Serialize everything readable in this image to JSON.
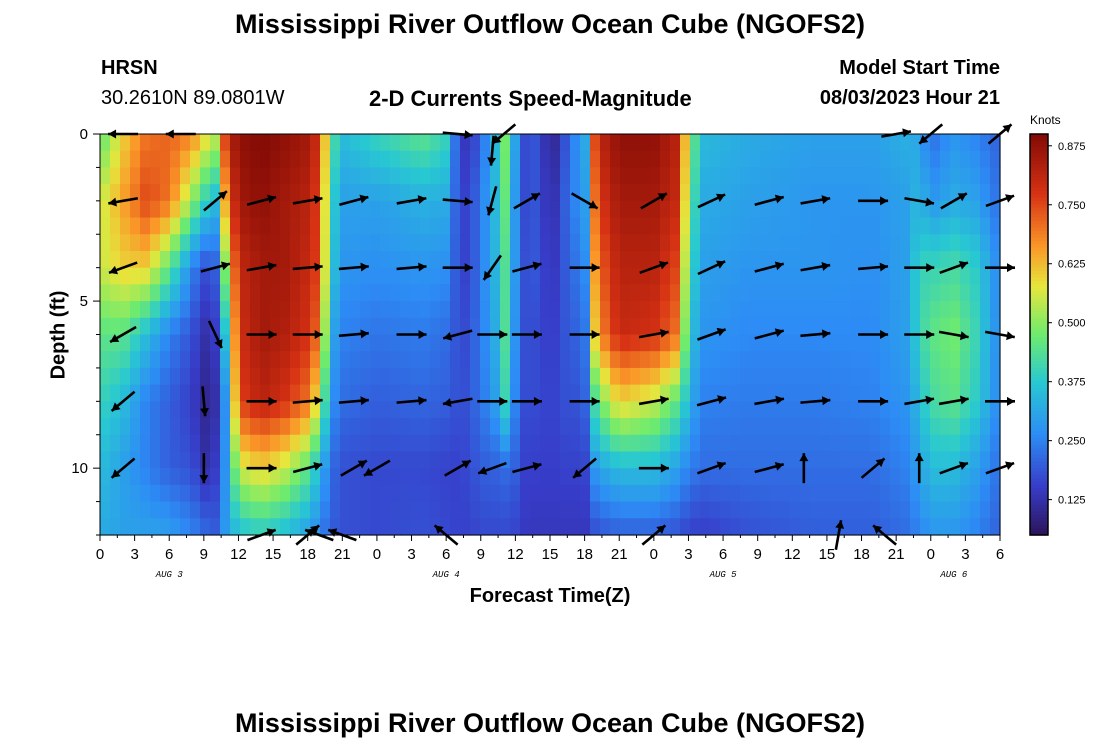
{
  "header": {
    "title": "Mississippi River Outflow Ocean Cube (NGOFS2)",
    "station": "HRSN",
    "coords": "30.2610N  89.0801W",
    "subtitle": "2-D Currents Speed-Magnitude",
    "model_start_label": "Model Start Time",
    "model_start_value": "08/03/2023 Hour 21"
  },
  "footer": {
    "title": "Mississippi River Outflow Ocean Cube (NGOFS2)"
  },
  "chart_data": {
    "type": "heatmap",
    "title": "2-D Currents Speed-Magnitude",
    "xlabel": "Forecast Time(Z)",
    "ylabel": "Depth (ft)",
    "x_tick_labels": [
      "0",
      "3",
      "6",
      "9",
      "12",
      "15",
      "18",
      "21",
      "0",
      "3",
      "6",
      "9",
      "12",
      "15",
      "18",
      "21",
      "0",
      "3",
      "6",
      "9",
      "12",
      "15",
      "18",
      "21",
      "0",
      "3",
      "6"
    ],
    "day_labels": [
      {
        "label": "AUG 3",
        "hour": 6
      },
      {
        "label": "AUG 4",
        "hour": 30
      },
      {
        "label": "AUG 5",
        "hour": 54
      },
      {
        "label": "AUG 6",
        "hour": 74
      }
    ],
    "y_ticks": [
      0,
      5,
      10
    ],
    "ylim": [
      0,
      12
    ],
    "xlim_hours": [
      0,
      78
    ],
    "colorbar": {
      "unit": "Knots",
      "ticks": [
        0.125,
        0.25,
        0.375,
        0.5,
        0.625,
        0.75,
        0.875
      ],
      "tick_labels": [
        "0.125",
        "0.250",
        "0.375",
        "0.500",
        "0.625",
        "0.750",
        "0.875"
      ],
      "range": [
        0.05,
        0.9
      ]
    },
    "depth_levels_ft": [
      0,
      2,
      4,
      6,
      8,
      10,
      12
    ],
    "speed_profiles": [
      {
        "hour": 0,
        "values": [
          0.45,
          0.55,
          0.55,
          0.45,
          0.4,
          0.35,
          0.32
        ]
      },
      {
        "hour": 2,
        "values": [
          0.6,
          0.65,
          0.6,
          0.45,
          0.35,
          0.3,
          0.3
        ]
      },
      {
        "hour": 4,
        "values": [
          0.7,
          0.75,
          0.6,
          0.35,
          0.25,
          0.25,
          0.3
        ]
      },
      {
        "hour": 6,
        "values": [
          0.72,
          0.7,
          0.45,
          0.25,
          0.2,
          0.2,
          0.3
        ]
      },
      {
        "hour": 8,
        "values": [
          0.68,
          0.5,
          0.25,
          0.18,
          0.15,
          0.18,
          0.25
        ]
      },
      {
        "hour": 9,
        "values": [
          0.6,
          0.4,
          0.18,
          0.12,
          0.1,
          0.12,
          0.22
        ]
      },
      {
        "hour": 10,
        "values": [
          0.55,
          0.35,
          0.2,
          0.15,
          0.12,
          0.15,
          0.2
        ]
      },
      {
        "hour": 11,
        "values": [
          0.8,
          0.7,
          0.55,
          0.4,
          0.3,
          0.3,
          0.3
        ]
      },
      {
        "hour": 12,
        "values": [
          0.88,
          0.85,
          0.8,
          0.78,
          0.75,
          0.55,
          0.35
        ]
      },
      {
        "hour": 14,
        "values": [
          0.9,
          0.88,
          0.85,
          0.85,
          0.82,
          0.6,
          0.38
        ]
      },
      {
        "hour": 16,
        "values": [
          0.88,
          0.85,
          0.85,
          0.83,
          0.78,
          0.55,
          0.35
        ]
      },
      {
        "hour": 18,
        "values": [
          0.85,
          0.82,
          0.8,
          0.78,
          0.7,
          0.45,
          0.3
        ]
      },
      {
        "hour": 19,
        "values": [
          0.78,
          0.75,
          0.75,
          0.7,
          0.55,
          0.35,
          0.25
        ]
      },
      {
        "hour": 20,
        "values": [
          0.45,
          0.4,
          0.38,
          0.32,
          0.28,
          0.22,
          0.2
        ]
      },
      {
        "hour": 21,
        "values": [
          0.35,
          0.3,
          0.28,
          0.25,
          0.22,
          0.18,
          0.18
        ]
      },
      {
        "hour": 24,
        "values": [
          0.4,
          0.3,
          0.27,
          0.23,
          0.2,
          0.17,
          0.17
        ]
      },
      {
        "hour": 28,
        "values": [
          0.45,
          0.33,
          0.28,
          0.24,
          0.21,
          0.17,
          0.18
        ]
      },
      {
        "hour": 30,
        "values": [
          0.4,
          0.32,
          0.27,
          0.22,
          0.2,
          0.16,
          0.17
        ]
      },
      {
        "hour": 31,
        "values": [
          0.18,
          0.18,
          0.18,
          0.18,
          0.18,
          0.16,
          0.16
        ]
      },
      {
        "hour": 32,
        "values": [
          0.12,
          0.15,
          0.15,
          0.17,
          0.18,
          0.17,
          0.16
        ]
      },
      {
        "hour": 33,
        "values": [
          0.22,
          0.25,
          0.25,
          0.25,
          0.24,
          0.2,
          0.17
        ]
      },
      {
        "hour": 34,
        "values": [
          0.3,
          0.3,
          0.3,
          0.28,
          0.26,
          0.2,
          0.17
        ]
      },
      {
        "hour": 35,
        "values": [
          0.5,
          0.48,
          0.45,
          0.45,
          0.42,
          0.22,
          0.17
        ]
      },
      {
        "hour": 36,
        "values": [
          0.3,
          0.28,
          0.28,
          0.27,
          0.25,
          0.2,
          0.16
        ]
      },
      {
        "hour": 37,
        "values": [
          0.15,
          0.15,
          0.16,
          0.16,
          0.16,
          0.15,
          0.14
        ]
      },
      {
        "hour": 38,
        "values": [
          0.2,
          0.2,
          0.2,
          0.18,
          0.18,
          0.16,
          0.14
        ]
      },
      {
        "hour": 39,
        "values": [
          0.08,
          0.1,
          0.12,
          0.14,
          0.15,
          0.15,
          0.14
        ]
      },
      {
        "hour": 40,
        "values": [
          0.15,
          0.18,
          0.18,
          0.18,
          0.18,
          0.16,
          0.14
        ]
      },
      {
        "hour": 41,
        "values": [
          0.25,
          0.25,
          0.22,
          0.2,
          0.18,
          0.16,
          0.14
        ]
      },
      {
        "hour": 42,
        "values": [
          0.3,
          0.28,
          0.25,
          0.22,
          0.2,
          0.16,
          0.14
        ]
      },
      {
        "hour": 43,
        "values": [
          0.8,
          0.75,
          0.7,
          0.65,
          0.45,
          0.3,
          0.18
        ]
      },
      {
        "hour": 45,
        "values": [
          0.88,
          0.85,
          0.82,
          0.8,
          0.6,
          0.35,
          0.2
        ]
      },
      {
        "hour": 48,
        "values": [
          0.88,
          0.85,
          0.82,
          0.78,
          0.55,
          0.35,
          0.2
        ]
      },
      {
        "hour": 50,
        "values": [
          0.82,
          0.8,
          0.75,
          0.7,
          0.45,
          0.3,
          0.18
        ]
      },
      {
        "hour": 51,
        "values": [
          0.55,
          0.5,
          0.45,
          0.4,
          0.35,
          0.25,
          0.16
        ]
      },
      {
        "hour": 52,
        "values": [
          0.35,
          0.32,
          0.3,
          0.28,
          0.25,
          0.22,
          0.15
        ]
      },
      {
        "hour": 56,
        "values": [
          0.32,
          0.3,
          0.28,
          0.26,
          0.24,
          0.22,
          0.18
        ]
      },
      {
        "hour": 62,
        "values": [
          0.3,
          0.28,
          0.28,
          0.26,
          0.24,
          0.22,
          0.2
        ]
      },
      {
        "hour": 67,
        "values": [
          0.3,
          0.28,
          0.27,
          0.26,
          0.25,
          0.22,
          0.2
        ]
      },
      {
        "hour": 70,
        "values": [
          0.33,
          0.3,
          0.3,
          0.3,
          0.28,
          0.25,
          0.22
        ]
      },
      {
        "hour": 71,
        "values": [
          0.3,
          0.35,
          0.4,
          0.4,
          0.35,
          0.3,
          0.25
        ]
      },
      {
        "hour": 72,
        "values": [
          0.22,
          0.28,
          0.4,
          0.45,
          0.42,
          0.35,
          0.28
        ]
      },
      {
        "hour": 74,
        "values": [
          0.28,
          0.32,
          0.42,
          0.48,
          0.45,
          0.35,
          0.28
        ]
      },
      {
        "hour": 76,
        "values": [
          0.25,
          0.3,
          0.38,
          0.4,
          0.38,
          0.3,
          0.25
        ]
      },
      {
        "hour": 78,
        "values": [
          0.2,
          0.22,
          0.25,
          0.25,
          0.25,
          0.22,
          0.2
        ]
      }
    ],
    "vectors": [
      {
        "hour": 2,
        "depth": 0,
        "dir": 180
      },
      {
        "hour": 7,
        "depth": 0,
        "dir": 180
      },
      {
        "hour": 31,
        "depth": 0,
        "dir": 355
      },
      {
        "hour": 35,
        "depth": 0,
        "dir": 220
      },
      {
        "hour": 69,
        "depth": 0,
        "dir": 10
      },
      {
        "hour": 72,
        "depth": 0,
        "dir": 220
      },
      {
        "hour": 78,
        "depth": 0,
        "dir": 40
      },
      {
        "hour": 34,
        "depth": 0.5,
        "dir": 265
      },
      {
        "hour": 2,
        "depth": 2,
        "dir": 190
      },
      {
        "hour": 10,
        "depth": 2,
        "dir": 40
      },
      {
        "hour": 14,
        "depth": 2,
        "dir": 15
      },
      {
        "hour": 18,
        "depth": 2,
        "dir": 10
      },
      {
        "hour": 22,
        "depth": 2,
        "dir": 15
      },
      {
        "hour": 27,
        "depth": 2,
        "dir": 10
      },
      {
        "hour": 31,
        "depth": 2,
        "dir": 355
      },
      {
        "hour": 34,
        "depth": 2,
        "dir": 255
      },
      {
        "hour": 37,
        "depth": 2,
        "dir": 30
      },
      {
        "hour": 42,
        "depth": 2,
        "dir": 330
      },
      {
        "hour": 48,
        "depth": 2,
        "dir": 30
      },
      {
        "hour": 53,
        "depth": 2,
        "dir": 25
      },
      {
        "hour": 58,
        "depth": 2,
        "dir": 15
      },
      {
        "hour": 62,
        "depth": 2,
        "dir": 10
      },
      {
        "hour": 67,
        "depth": 2,
        "dir": 0
      },
      {
        "hour": 71,
        "depth": 2,
        "dir": 350
      },
      {
        "hour": 74,
        "depth": 2,
        "dir": 30
      },
      {
        "hour": 78,
        "depth": 2,
        "dir": 20
      },
      {
        "hour": 2,
        "depth": 4,
        "dir": 200
      },
      {
        "hour": 10,
        "depth": 4,
        "dir": 15
      },
      {
        "hour": 14,
        "depth": 4,
        "dir": 10
      },
      {
        "hour": 18,
        "depth": 4,
        "dir": 5
      },
      {
        "hour": 22,
        "depth": 4,
        "dir": 5
      },
      {
        "hour": 27,
        "depth": 4,
        "dir": 5
      },
      {
        "hour": 31,
        "depth": 4,
        "dir": 0
      },
      {
        "hour": 34,
        "depth": 4,
        "dir": 235
      },
      {
        "hour": 37,
        "depth": 4,
        "dir": 15
      },
      {
        "hour": 42,
        "depth": 4,
        "dir": 0
      },
      {
        "hour": 48,
        "depth": 4,
        "dir": 20
      },
      {
        "hour": 53,
        "depth": 4,
        "dir": 25
      },
      {
        "hour": 58,
        "depth": 4,
        "dir": 15
      },
      {
        "hour": 62,
        "depth": 4,
        "dir": 10
      },
      {
        "hour": 67,
        "depth": 4,
        "dir": 5
      },
      {
        "hour": 71,
        "depth": 4,
        "dir": 0
      },
      {
        "hour": 74,
        "depth": 4,
        "dir": 20
      },
      {
        "hour": 78,
        "depth": 4,
        "dir": 0
      },
      {
        "hour": 2,
        "depth": 6,
        "dir": 210
      },
      {
        "hour": 10,
        "depth": 6,
        "dir": 295
      },
      {
        "hour": 14,
        "depth": 6,
        "dir": 0
      },
      {
        "hour": 18,
        "depth": 6,
        "dir": 0
      },
      {
        "hour": 22,
        "depth": 6,
        "dir": 5
      },
      {
        "hour": 27,
        "depth": 6,
        "dir": 0
      },
      {
        "hour": 31,
        "depth": 6,
        "dir": 195
      },
      {
        "hour": 34,
        "depth": 6,
        "dir": 0
      },
      {
        "hour": 37,
        "depth": 6,
        "dir": 0
      },
      {
        "hour": 42,
        "depth": 6,
        "dir": 0
      },
      {
        "hour": 48,
        "depth": 6,
        "dir": 10
      },
      {
        "hour": 53,
        "depth": 6,
        "dir": 20
      },
      {
        "hour": 58,
        "depth": 6,
        "dir": 15
      },
      {
        "hour": 62,
        "depth": 6,
        "dir": 5
      },
      {
        "hour": 67,
        "depth": 6,
        "dir": 0
      },
      {
        "hour": 71,
        "depth": 6,
        "dir": 0
      },
      {
        "hour": 74,
        "depth": 6,
        "dir": 350
      },
      {
        "hour": 78,
        "depth": 6,
        "dir": 350
      },
      {
        "hour": 2,
        "depth": 8,
        "dir": 220
      },
      {
        "hour": 9,
        "depth": 8,
        "dir": 275
      },
      {
        "hour": 14,
        "depth": 8,
        "dir": 0
      },
      {
        "hour": 18,
        "depth": 8,
        "dir": 5
      },
      {
        "hour": 22,
        "depth": 8,
        "dir": 5
      },
      {
        "hour": 27,
        "depth": 8,
        "dir": 5
      },
      {
        "hour": 31,
        "depth": 8,
        "dir": 190
      },
      {
        "hour": 34,
        "depth": 8,
        "dir": 0
      },
      {
        "hour": 37,
        "depth": 8,
        "dir": 0
      },
      {
        "hour": 42,
        "depth": 8,
        "dir": 0
      },
      {
        "hour": 48,
        "depth": 8,
        "dir": 10
      },
      {
        "hour": 53,
        "depth": 8,
        "dir": 15
      },
      {
        "hour": 58,
        "depth": 8,
        "dir": 10
      },
      {
        "hour": 62,
        "depth": 8,
        "dir": 5
      },
      {
        "hour": 67,
        "depth": 8,
        "dir": 0
      },
      {
        "hour": 71,
        "depth": 8,
        "dir": 10
      },
      {
        "hour": 74,
        "depth": 8,
        "dir": 10
      },
      {
        "hour": 78,
        "depth": 8,
        "dir": 0
      },
      {
        "hour": 2,
        "depth": 10,
        "dir": 220
      },
      {
        "hour": 9,
        "depth": 10,
        "dir": 270
      },
      {
        "hour": 14,
        "depth": 10,
        "dir": 0
      },
      {
        "hour": 18,
        "depth": 10,
        "dir": 15
      },
      {
        "hour": 22,
        "depth": 10,
        "dir": 30
      },
      {
        "hour": 24,
        "depth": 10,
        "dir": 210
      },
      {
        "hour": 31,
        "depth": 10,
        "dir": 30
      },
      {
        "hour": 34,
        "depth": 10,
        "dir": 200
      },
      {
        "hour": 37,
        "depth": 10,
        "dir": 15
      },
      {
        "hour": 42,
        "depth": 10,
        "dir": 220
      },
      {
        "hour": 48,
        "depth": 10,
        "dir": 0
      },
      {
        "hour": 53,
        "depth": 10,
        "dir": 20
      },
      {
        "hour": 58,
        "depth": 10,
        "dir": 15
      },
      {
        "hour": 61,
        "depth": 10,
        "dir": 90
      },
      {
        "hour": 67,
        "depth": 10,
        "dir": 40
      },
      {
        "hour": 71,
        "depth": 10,
        "dir": 90
      },
      {
        "hour": 74,
        "depth": 10,
        "dir": 20
      },
      {
        "hour": 78,
        "depth": 10,
        "dir": 20
      },
      {
        "hour": 14,
        "depth": 12,
        "dir": 20
      },
      {
        "hour": 18,
        "depth": 12,
        "dir": 40
      },
      {
        "hour": 19,
        "depth": 12,
        "dir": 160
      },
      {
        "hour": 21,
        "depth": 12,
        "dir": 160
      },
      {
        "hour": 30,
        "depth": 12,
        "dir": 140
      },
      {
        "hour": 48,
        "depth": 12,
        "dir": 40
      },
      {
        "hour": 64,
        "depth": 12,
        "dir": 80
      },
      {
        "hour": 68,
        "depth": 12,
        "dir": 140
      }
    ]
  }
}
